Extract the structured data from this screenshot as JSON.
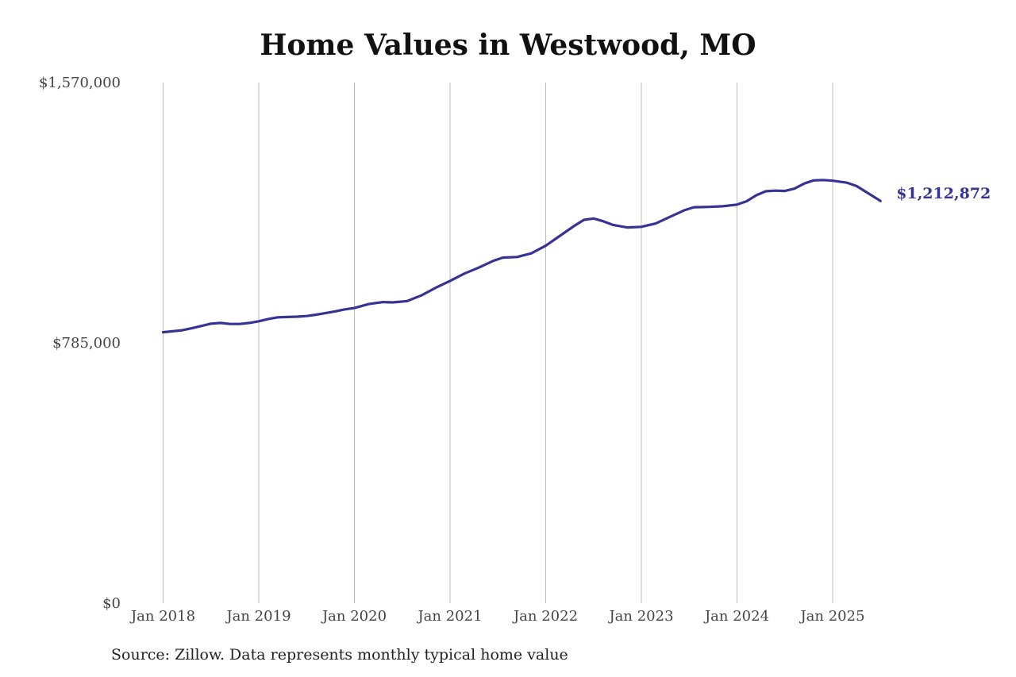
{
  "chart_data": {
    "type": "line",
    "title": "Home Values in Westwood, MO",
    "ylim": [
      0,
      1570000
    ],
    "y_ticks": [
      {
        "value": 0,
        "label": "$0"
      },
      {
        "value": 785000,
        "label": "$785,000"
      },
      {
        "value": 1570000,
        "label": "$1,570,000"
      }
    ],
    "x_ticks": [
      {
        "value": 2018.0,
        "label": "Jan 2018"
      },
      {
        "value": 2019.0,
        "label": "Jan 2019"
      },
      {
        "value": 2020.0,
        "label": "Jan 2020"
      },
      {
        "value": 2021.0,
        "label": "Jan 2021"
      },
      {
        "value": 2022.0,
        "label": "Jan 2022"
      },
      {
        "value": 2023.0,
        "label": "Jan 2023"
      },
      {
        "value": 2024.0,
        "label": "Jan 2024"
      },
      {
        "value": 2025.0,
        "label": "Jan 2025"
      }
    ],
    "grid": "vertical lines at x ticks",
    "line_color": "#363394",
    "series": [
      {
        "x": [
          2018.0,
          2018.1,
          2018.2,
          2018.3,
          2018.4,
          2018.5,
          2018.6,
          2018.7,
          2018.8,
          2018.9,
          2019.0,
          2019.1,
          2019.2,
          2019.3,
          2019.4,
          2019.5,
          2019.6,
          2019.7,
          2019.8,
          2019.9,
          2020.0,
          2020.15,
          2020.3,
          2020.4,
          2020.55,
          2020.7,
          2020.85,
          2021.0,
          2021.15,
          2021.3,
          2021.45,
          2021.55,
          2021.7,
          2021.85,
          2022.0,
          2022.15,
          2022.3,
          2022.4,
          2022.5,
          2022.6,
          2022.7,
          2022.85,
          2023.0,
          2023.15,
          2023.3,
          2023.45,
          2023.55,
          2023.7,
          2023.85,
          2024.0,
          2024.1,
          2024.2,
          2024.3,
          2024.4,
          2024.5,
          2024.6,
          2024.7,
          2024.8,
          2024.9,
          2025.0,
          2025.15,
          2025.25,
          2025.35,
          2025.5
        ],
        "y": [
          817000,
          820000,
          823000,
          829000,
          836000,
          843000,
          845000,
          842000,
          842000,
          845000,
          850000,
          857000,
          862000,
          863000,
          864000,
          866000,
          870000,
          875000,
          880000,
          886000,
          890000,
          902000,
          908000,
          907000,
          911000,
          928000,
          951000,
          972000,
          994000,
          1012000,
          1032000,
          1042000,
          1044000,
          1055000,
          1078000,
          1108000,
          1138000,
          1156000,
          1160000,
          1152000,
          1141000,
          1133000,
          1135000,
          1145000,
          1165000,
          1185000,
          1194000,
          1195000,
          1197000,
          1202000,
          1212000,
          1230000,
          1242000,
          1244000,
          1243000,
          1250000,
          1265000,
          1275000,
          1276000,
          1274000,
          1268000,
          1258000,
          1240000,
          1212872
        ]
      }
    ],
    "end_label": "$1,212,872"
  },
  "source_note": "Source: Zillow. Data represents monthly typical home value"
}
